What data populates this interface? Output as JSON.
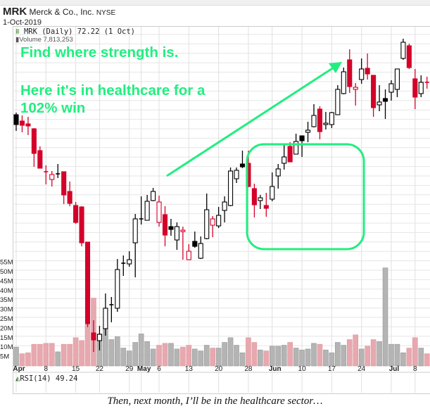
{
  "header": {
    "symbol": "MRK",
    "company": "Merck & Co., Inc.",
    "exchange": "NYSE",
    "date": "1-Oct-2019"
  },
  "legend": {
    "price": "MRK (Daily) 72.22 (1 Oct)",
    "volume": "Volume 7,813,253",
    "rsi": "RSI(14) 49.24"
  },
  "annotations": {
    "line1": "Find where strength is.",
    "line2": "Here it's in healthcare for a",
    "line3": "102% win",
    "color": "#22ee80"
  },
  "caption": "Then, next month, I’ll be in the healthcare sector…",
  "chart_data": {
    "type": "candlestick",
    "title": "MRK Merck & Co., Inc. NYSE",
    "colors": {
      "up": "#000000",
      "down": "#d4002a",
      "vol_up": "#b4b4b4",
      "vol_down": "#e8a8b0"
    },
    "candles": [
      [
        83.11,
        83.2,
        82.42,
        82.69,
        "B"
      ],
      [
        82.84,
        83.08,
        82.36,
        82.66,
        "R"
      ],
      [
        82.72,
        83.02,
        82.24,
        82.63,
        "R"
      ],
      [
        82.51,
        82.54,
        80.89,
        81.46,
        "R"
      ],
      [
        81.58,
        81.76,
        80.83,
        80.83,
        "R"
      ],
      [
        80.68,
        80.95,
        80.14,
        80.68,
        "R"
      ],
      [
        80.35,
        80.71,
        80.05,
        80.56,
        "R"
      ],
      [
        80.59,
        81.01,
        80.41,
        80.59,
        "B"
      ],
      [
        80.68,
        80.68,
        79.3,
        79.69,
        "R"
      ],
      [
        79.84,
        80.26,
        79.21,
        79.33,
        "R"
      ],
      [
        79.24,
        79.39,
        78.46,
        78.52,
        "R"
      ],
      [
        79.18,
        79.21,
        77.5,
        77.65,
        "R"
      ],
      [
        77.68,
        77.68,
        74.05,
        74.2,
        "R"
      ],
      [
        73.81,
        74.35,
        73.0,
        73.51,
        "R"
      ],
      [
        73.48,
        74.11,
        73.06,
        73.75,
        "B"
      ],
      [
        73.99,
        75.49,
        73.69,
        74.86,
        "B"
      ],
      [
        75.01,
        75.34,
        74.26,
        75.01,
        "B"
      ],
      [
        74.86,
        76.96,
        74.71,
        76.51,
        "B"
      ],
      [
        76.78,
        77.11,
        76.24,
        76.78,
        "B"
      ],
      [
        76.75,
        77.29,
        76.63,
        76.93,
        "B"
      ],
      [
        77.65,
        78.88,
        76.18,
        78.67,
        "B"
      ],
      [
        78.67,
        79.63,
        78.43,
        78.67,
        "B"
      ],
      [
        78.61,
        79.69,
        78.61,
        79.42,
        "B"
      ],
      [
        79.45,
        79.99,
        79.42,
        79.84,
        "B"
      ],
      [
        78.52,
        79.66,
        78.34,
        79.39,
        "R"
      ],
      [
        78.85,
        79.21,
        77.5,
        77.98,
        "R"
      ],
      [
        78.34,
        78.67,
        77.95,
        78.22,
        "B"
      ],
      [
        77.77,
        78.52,
        77.35,
        78.34,
        "B"
      ],
      [
        78.13,
        78.34,
        76.93,
        78.19,
        "R"
      ],
      [
        76.93,
        77.59,
        76.93,
        77.29,
        "R"
      ],
      [
        77.71,
        78.13,
        77.44,
        77.5,
        "B"
      ],
      [
        76.99,
        77.92,
        76.96,
        77.62,
        "B"
      ],
      [
        77.83,
        79.75,
        77.8,
        79.06,
        "B"
      ],
      [
        78.4,
        78.79,
        77.89,
        78.67,
        "R"
      ],
      [
        78.37,
        79.18,
        78.28,
        78.82,
        "B"
      ],
      [
        79.03,
        79.63,
        78.52,
        79.39,
        "B"
      ],
      [
        79.24,
        80.86,
        79.21,
        80.71,
        "B"
      ],
      [
        80.38,
        80.86,
        80.2,
        80.74,
        "B"
      ],
      [
        81.01,
        81.58,
        80.83,
        80.89,
        "B"
      ],
      [
        81.04,
        81.58,
        80.02,
        80.05,
        "R"
      ],
      [
        79.96,
        80.17,
        78.73,
        79.27,
        "R"
      ],
      [
        79.45,
        79.69,
        79.09,
        79.57,
        "B"
      ],
      [
        79.24,
        79.78,
        78.76,
        79.12,
        "R"
      ],
      [
        79.51,
        80.65,
        79.42,
        80.05,
        "B"
      ],
      [
        80.5,
        81.01,
        79.96,
        80.8,
        "B"
      ],
      [
        81.04,
        81.82,
        80.77,
        81.31,
        "B"
      ],
      [
        81.76,
        81.94,
        81.1,
        81.1,
        "R"
      ],
      [
        81.43,
        82.3,
        81.43,
        81.97,
        "B"
      ],
      [
        82.21,
        82.21,
        81.31,
        82.0,
        "B"
      ],
      [
        82.36,
        82.81,
        81.94,
        82.45,
        "B"
      ],
      [
        82.6,
        83.56,
        82.57,
        83.08,
        "B"
      ],
      [
        83.35,
        83.47,
        82.06,
        82.39,
        "R"
      ],
      [
        82.69,
        83.23,
        82.48,
        82.75,
        "B"
      ],
      [
        82.69,
        83.23,
        82.54,
        83.2,
        "B"
      ],
      [
        83.11,
        84.37,
        83.11,
        84.19,
        "B"
      ],
      [
        84.01,
        85.12,
        83.98,
        84.94,
        "B"
      ],
      [
        85.45,
        85.9,
        84.04,
        84.31,
        "R"
      ],
      [
        84.19,
        84.46,
        83.5,
        84.28,
        "R"
      ],
      [
        84.61,
        85.51,
        84.43,
        85.06,
        "B"
      ],
      [
        85.09,
        85.72,
        84.61,
        84.85,
        "R"
      ],
      [
        84.79,
        84.79,
        83.02,
        83.41,
        "R"
      ],
      [
        83.53,
        84.37,
        83.26,
        83.65,
        "B"
      ],
      [
        83.8,
        84.19,
        82.93,
        83.68,
        "B"
      ],
      [
        84.07,
        84.58,
        83.71,
        84.43,
        "B"
      ],
      [
        84.19,
        85.06,
        83.86,
        85.06,
        "B"
      ],
      [
        85.51,
        86.35,
        85.45,
        86.2,
        "B"
      ],
      [
        86.05,
        86.14,
        85.06,
        85.12,
        "R"
      ],
      [
        84.64,
        85.06,
        83.35,
        83.86,
        "R"
      ],
      [
        84.01,
        84.79,
        83.86,
        84.49,
        "B"
      ],
      [
        84.49,
        84.73,
        84.22,
        84.49,
        "R"
      ]
    ],
    "volume_millions": [
      10,
      6.5,
      7,
      11.5,
      11.5,
      12,
      12,
      7.5,
      11.5,
      11.5,
      15,
      13.5,
      22,
      36,
      17,
      20,
      14,
      15.5,
      9.5,
      8,
      12.5,
      17,
      13,
      9,
      11,
      12,
      12,
      9,
      10,
      11,
      9,
      8,
      11,
      9.5,
      9.5,
      12.5,
      15,
      11,
      7,
      15,
      12.5,
      8.5,
      8,
      10.5,
      10.5,
      11,
      12.5,
      9.5,
      8.5,
      9,
      12,
      11.5,
      8.5,
      7,
      12.5,
      11,
      14,
      16.5,
      9,
      10.5,
      14,
      13,
      52,
      11.5,
      11.5,
      7,
      9.5,
      15,
      9.5,
      6.5
    ],
    "volume_colors": [
      "G",
      "R",
      "R",
      "R",
      "R",
      "R",
      "R",
      "G",
      "R",
      "R",
      "R",
      "R",
      "R",
      "R",
      "G",
      "G",
      "G",
      "G",
      "G",
      "G",
      "G",
      "G",
      "G",
      "G",
      "R",
      "R",
      "G",
      "G",
      "R",
      "R",
      "G",
      "G",
      "G",
      "R",
      "G",
      "G",
      "G",
      "G",
      "G",
      "R",
      "R",
      "G",
      "R",
      "G",
      "G",
      "G",
      "R",
      "G",
      "G",
      "G",
      "G",
      "R",
      "G",
      "G",
      "G",
      "G",
      "R",
      "R",
      "G",
      "R",
      "R",
      "G",
      "G",
      "G",
      "G",
      "G",
      "R",
      "R",
      "G",
      "R"
    ],
    "volume_ticks": [
      "55M",
      "50M",
      "45M",
      "40M",
      "35M",
      "30M",
      "25M",
      "20M",
      "15M",
      "10M",
      "5M"
    ],
    "x_labels": [
      {
        "label": "Apr",
        "index": 0,
        "major": true
      },
      {
        "label": "8",
        "index": 5
      },
      {
        "label": "15",
        "index": 10
      },
      {
        "label": "22",
        "index": 14
      },
      {
        "label": "29",
        "index": 19
      },
      {
        "label": "May",
        "index": 21,
        "major": true
      },
      {
        "label": "6",
        "index": 24
      },
      {
        "label": "13",
        "index": 29
      },
      {
        "label": "20",
        "index": 34
      },
      {
        "label": "28",
        "index": 39
      },
      {
        "label": "Jun",
        "index": 43,
        "major": true
      },
      {
        "label": "10",
        "index": 48
      },
      {
        "label": "17",
        "index": 53
      },
      {
        "label": "24",
        "index": 58
      },
      {
        "label": "Jul",
        "index": 63,
        "major": true
      },
      {
        "label": "8",
        "index": 67
      }
    ]
  }
}
